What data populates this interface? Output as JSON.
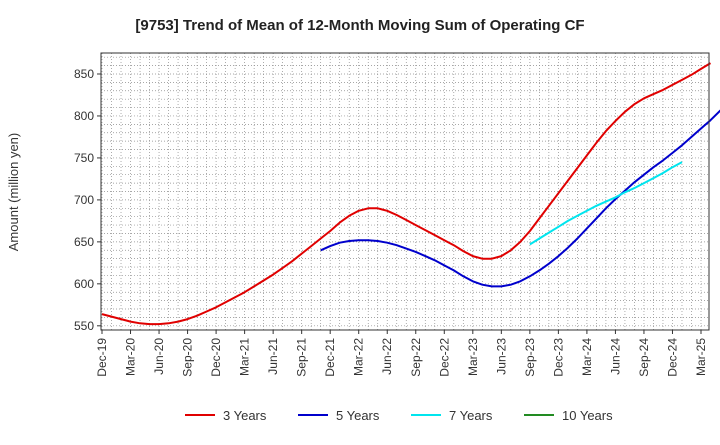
{
  "chart_data": {
    "type": "line",
    "title": "[9753]  Trend of Mean of 12-Month Moving Sum of Operating CF",
    "xlabel": "",
    "ylabel": "Amount (million yen)",
    "ylim": [
      545,
      875
    ],
    "yticks": [
      550,
      600,
      650,
      700,
      750,
      800,
      850
    ],
    "grid": true,
    "legend_position": "bottom",
    "x_tick_labels": [
      "Dec-19",
      "Mar-20",
      "Jun-20",
      "Sep-20",
      "Dec-20",
      "Mar-21",
      "Jun-21",
      "Sep-21",
      "Dec-21",
      "Mar-22",
      "Jun-22",
      "Sep-22",
      "Dec-22",
      "Mar-23",
      "Jun-23",
      "Sep-23",
      "Dec-23",
      "Mar-24",
      "Jun-24",
      "Sep-24",
      "Dec-24",
      "Mar-25"
    ],
    "series": [
      {
        "name": "3 Years",
        "color": "#e00000",
        "start_month_index": 0,
        "values": [
          564,
          561,
          558,
          555,
          553,
          552,
          552,
          553,
          555,
          558,
          562,
          567,
          572,
          578,
          584,
          590,
          597,
          604,
          611,
          619,
          627,
          636,
          645,
          654,
          663,
          673,
          681,
          687,
          690,
          690,
          687,
          682,
          676,
          670,
          664,
          658,
          652,
          646,
          639,
          633,
          630,
          630,
          633,
          640,
          650,
          663,
          678,
          693,
          708,
          723,
          738,
          753,
          768,
          782,
          794,
          805,
          814,
          821,
          826,
          831,
          837,
          843,
          849,
          856,
          863
        ],
        "name_label": "3 Years"
      },
      {
        "name": "5 Years",
        "color": "#0000cc",
        "start_month_index": 23,
        "values": [
          640,
          645,
          649,
          651,
          652,
          652,
          651,
          649,
          646,
          642,
          638,
          633,
          628,
          622,
          616,
          609,
          603,
          599,
          597,
          597,
          599,
          603,
          609,
          616,
          624,
          633,
          643,
          654,
          666,
          678,
          690,
          701,
          711,
          721,
          730,
          739,
          747,
          756,
          765,
          775,
          785,
          795,
          806,
          817
        ],
        "name_label": "5 Years"
      },
      {
        "name": "7 Years",
        "color": "#00e5ee",
        "start_month_index": 45,
        "values": [
          647,
          654,
          661,
          668,
          675,
          681,
          687,
          693,
          698,
          703,
          709,
          714,
          720,
          726,
          732,
          739,
          745
        ],
        "name_label": "7 Years"
      },
      {
        "name": "10 Years",
        "color": "#228b22",
        "start_month_index": null,
        "values": [],
        "name_label": "10 Years"
      }
    ]
  }
}
